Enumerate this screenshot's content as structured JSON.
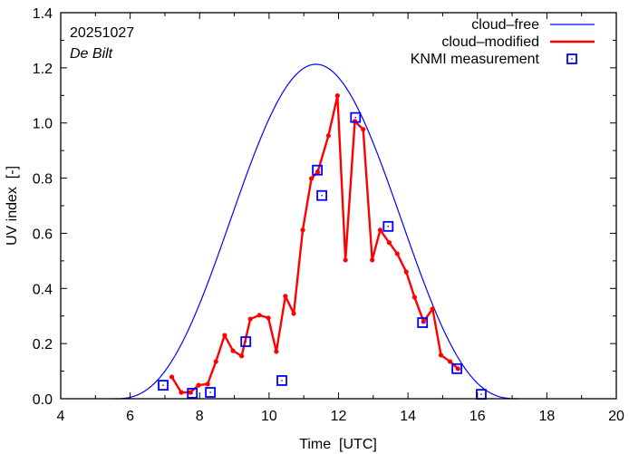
{
  "chart_data": {
    "type": "line",
    "title": "",
    "xlabel": "Time  [UTC]",
    "ylabel": "UV index  [-]",
    "xlim": [
      4,
      20
    ],
    "ylim": [
      0,
      1.4
    ],
    "xticks": [
      4,
      6,
      8,
      10,
      12,
      14,
      16,
      18,
      20
    ],
    "xtick_labels": [
      "4",
      "6",
      "8",
      "10",
      "12",
      "14",
      "16",
      "18",
      "20"
    ],
    "yticks": [
      0.0,
      0.2,
      0.4,
      0.6,
      0.8,
      1.0,
      1.2,
      1.4
    ],
    "ytick_labels": [
      "0.0",
      "0.2",
      "0.4",
      "0.6",
      "0.8",
      "1.0",
      "1.2",
      "1.4"
    ],
    "grid": false,
    "legend_position": "top-right",
    "annotations": {
      "date": "20251027",
      "location": "De Bilt"
    },
    "colors": {
      "cloud_free": "#0000ff",
      "cloud_modified": "#ff0000",
      "measurement": "#0000ff",
      "axes": "#000000"
    },
    "series": [
      {
        "name": "cloud–free",
        "style": "thin-line",
        "peak_x": 11.35,
        "peak_y": 1.213,
        "start_x": 5.55,
        "end_x": 17.15
      },
      {
        "name": "cloud–modified",
        "style": "line-with-dots",
        "x": [
          7.2,
          7.47,
          7.73,
          7.97,
          8.23,
          8.47,
          8.72,
          8.96,
          9.21,
          9.46,
          9.72,
          9.98,
          10.21,
          10.47,
          10.71,
          10.97,
          11.22,
          11.4,
          11.71,
          11.97,
          12.2,
          12.47,
          12.71,
          12.97,
          13.2,
          13.46,
          13.69,
          13.95,
          14.19,
          14.45,
          14.71,
          14.95,
          15.21,
          15.44
        ],
        "y": [
          0.079,
          0.023,
          0.023,
          0.049,
          0.053,
          0.135,
          0.23,
          0.174,
          0.155,
          0.289,
          0.303,
          0.293,
          0.171,
          0.372,
          0.309,
          0.612,
          0.799,
          0.822,
          0.954,
          1.099,
          0.503,
          1.006,
          0.977,
          0.503,
          0.612,
          0.566,
          0.526,
          0.46,
          0.368,
          0.28,
          0.326,
          0.158,
          0.135,
          0.109
        ]
      },
      {
        "name": "KNMI measurement",
        "style": "open-square-marker",
        "x": [
          6.95,
          7.79,
          8.31,
          9.33,
          10.37,
          11.39,
          11.52,
          12.49,
          13.43,
          14.42,
          15.41,
          16.11
        ],
        "y": [
          0.049,
          0.02,
          0.023,
          0.207,
          0.066,
          0.829,
          0.737,
          1.02,
          0.625,
          0.276,
          0.109,
          0.016
        ]
      }
    ]
  }
}
